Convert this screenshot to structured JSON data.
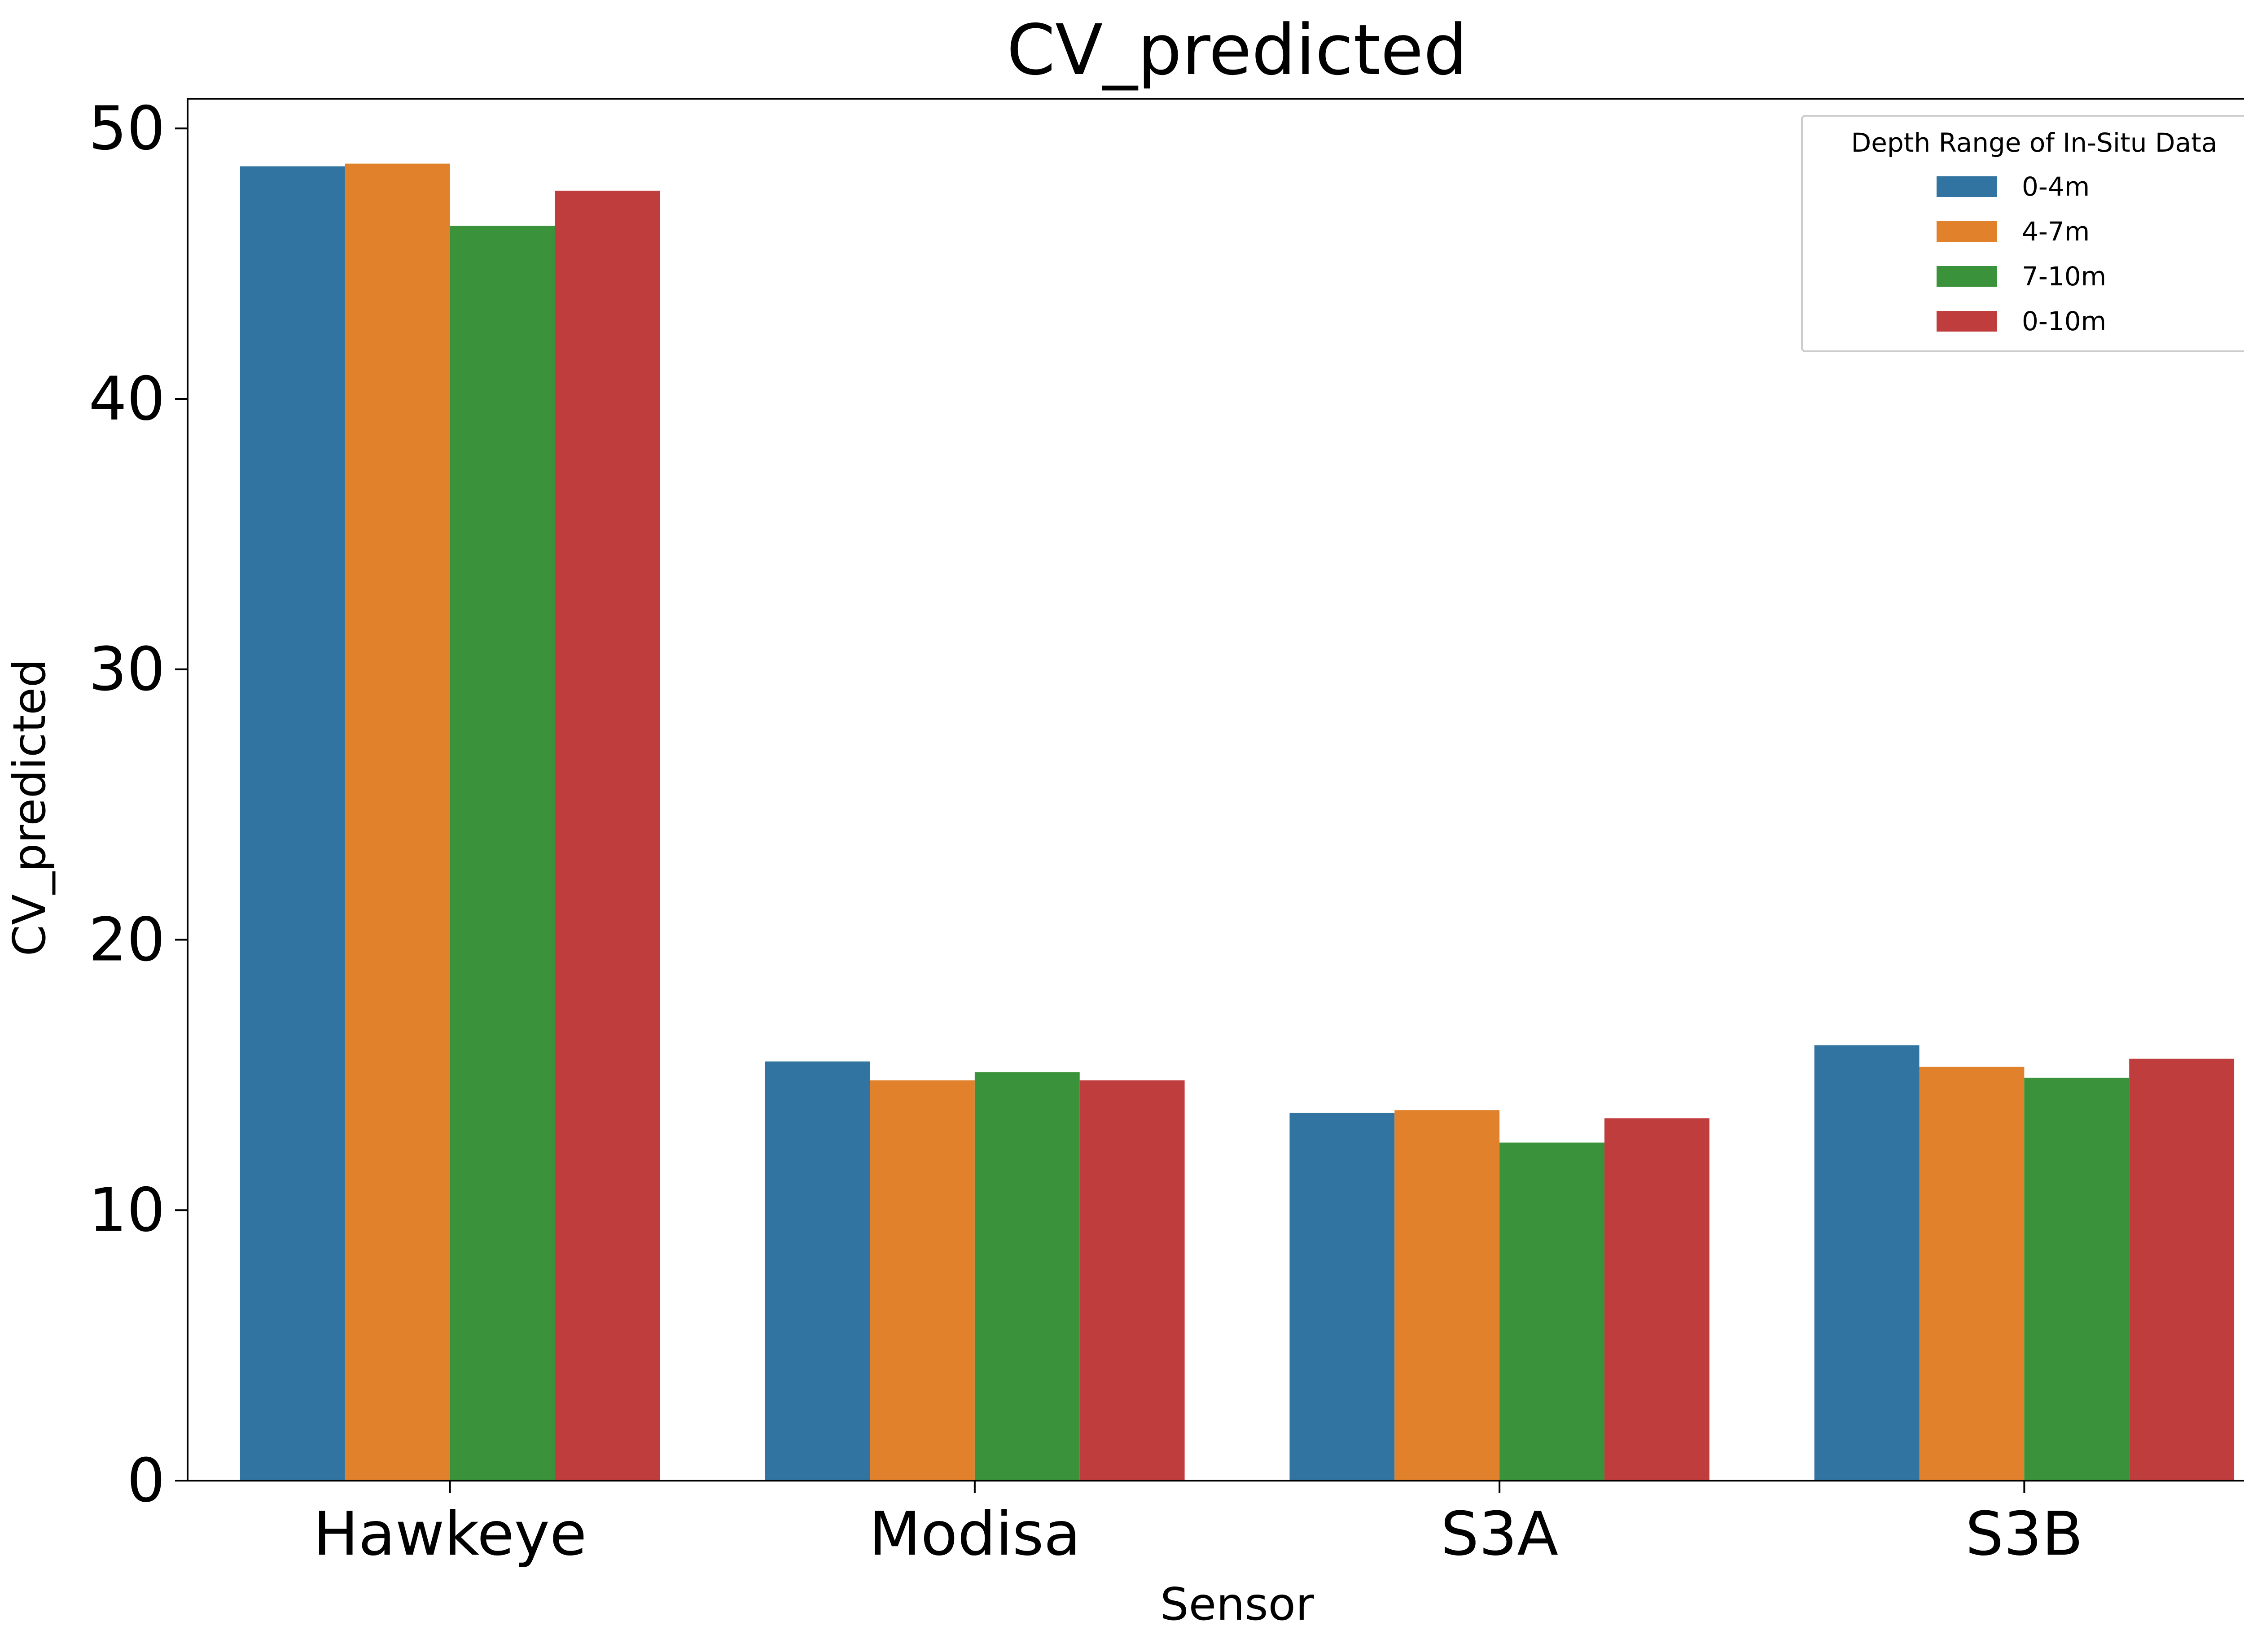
{
  "chart_data": {
    "type": "bar",
    "title": "CV_predicted",
    "xlabel": "Sensor",
    "ylabel": "CV_predicted",
    "categories": [
      "Hawkeye",
      "Modisa",
      "S3A",
      "S3B"
    ],
    "ylim": [
      0,
      51.1
    ],
    "yticks": [
      0,
      10,
      20,
      30,
      40,
      50
    ],
    "grid": false,
    "legend": {
      "title": "Depth Range of In-Situ Data",
      "placement": "top-right"
    },
    "series": [
      {
        "name": "0-4m",
        "color": "#3274a1",
        "values": [
          48.6,
          15.5,
          13.6,
          16.1
        ]
      },
      {
        "name": "4-7m",
        "color": "#e1812c",
        "values": [
          48.7,
          14.8,
          13.7,
          15.3
        ]
      },
      {
        "name": "7-10m",
        "color": "#3a923a",
        "values": [
          46.4,
          15.1,
          12.5,
          14.9
        ]
      },
      {
        "name": "0-10m",
        "color": "#c03d3e",
        "values": [
          47.7,
          14.8,
          13.4,
          15.6
        ]
      }
    ]
  }
}
